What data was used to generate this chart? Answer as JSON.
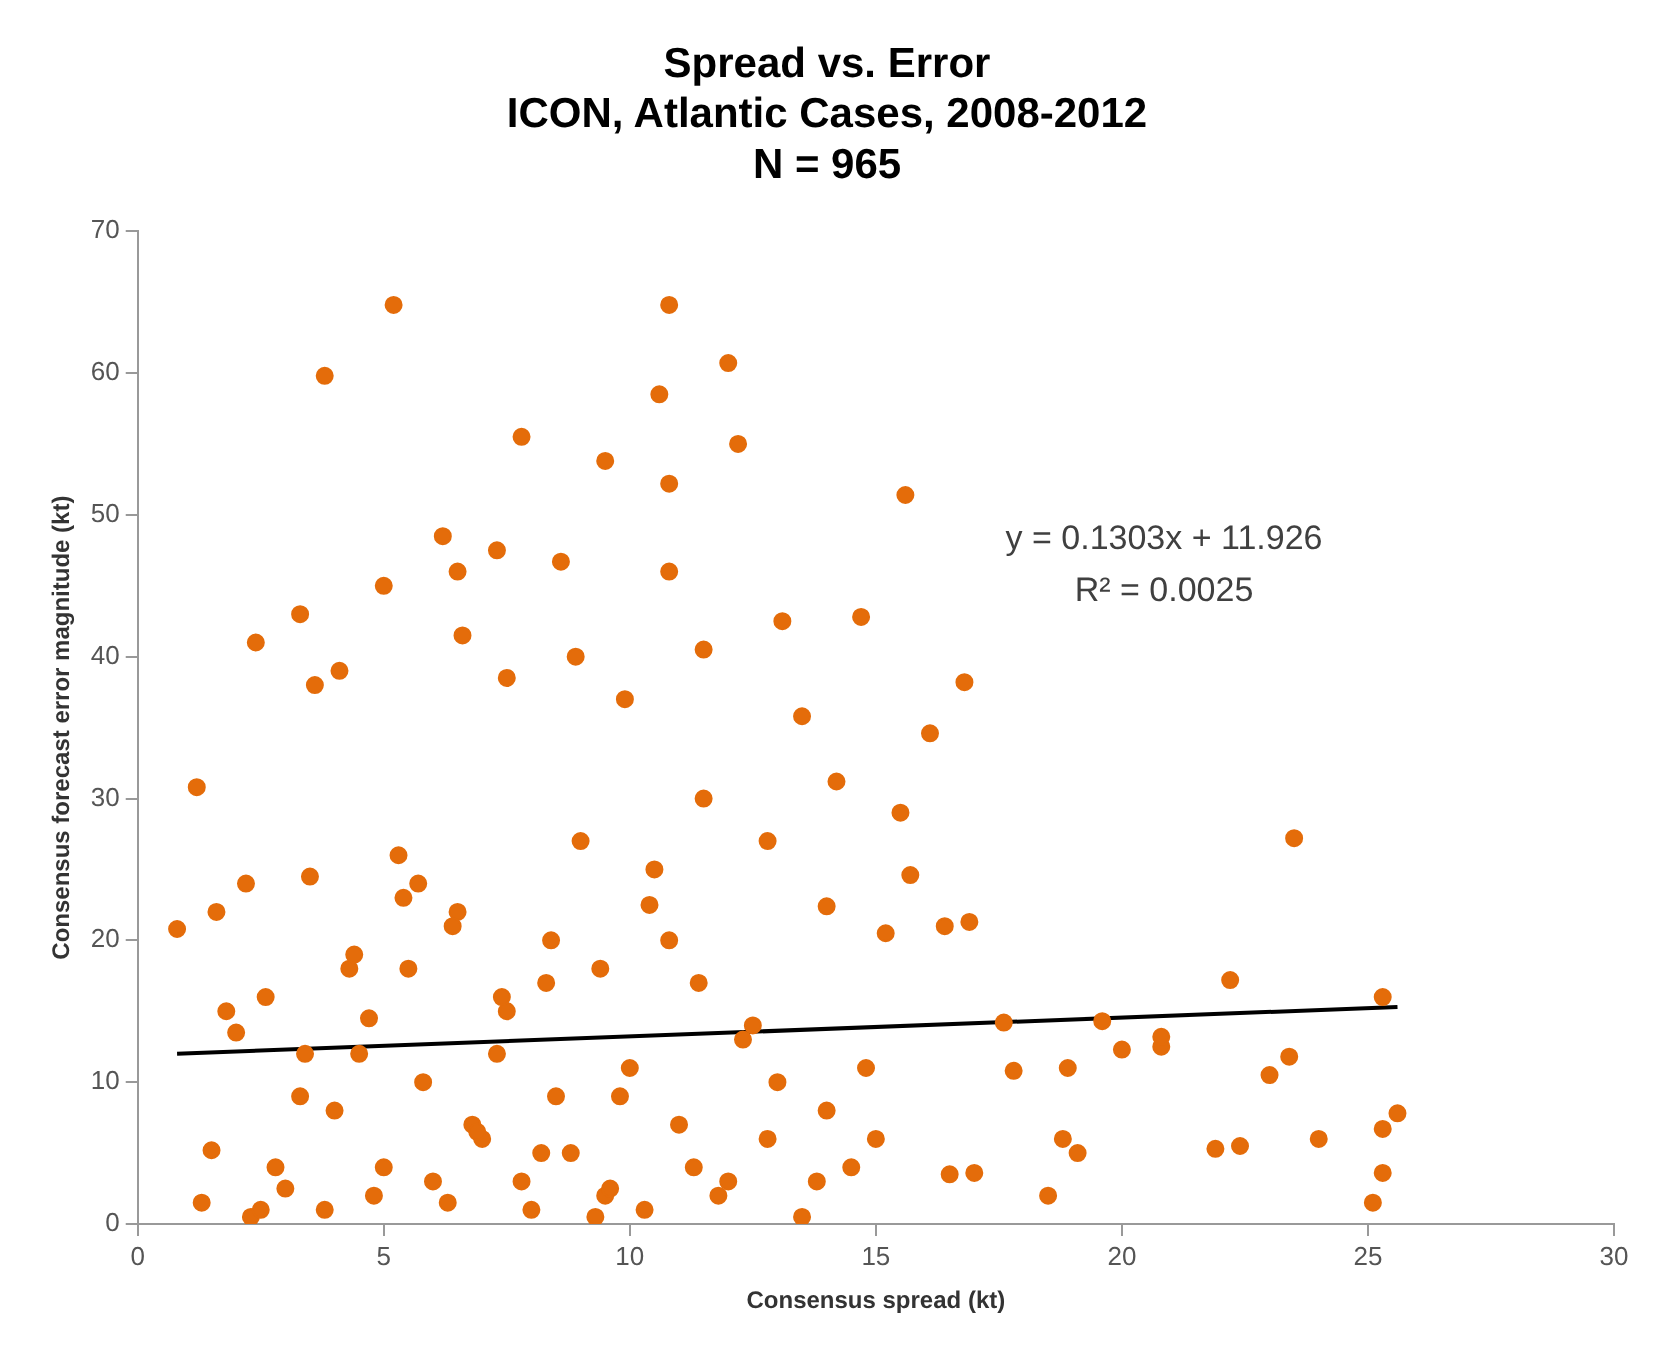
{
  "chart_data": {
    "type": "scatter",
    "title": "Spread vs. Error",
    "subtitle": "ICON, Atlantic Cases, 2008-2012\nN = 965",
    "xlabel": "Consensus spread (kt)",
    "ylabel": "Consensus forecast error magnitude (kt)",
    "xlim": [
      0,
      30
    ],
    "xticks": [
      0,
      5,
      10,
      15,
      20,
      25,
      30
    ],
    "ylim": [
      0,
      70
    ],
    "yticks": [
      0,
      10,
      20,
      30,
      40,
      50,
      60,
      70
    ],
    "grid": false,
    "legend": false,
    "marker": "circle",
    "annotations": [
      "y = 0.1303x + 11.926",
      "R² = 0.0025"
    ],
    "series": [
      {
        "color": "#e46c0a",
        "x": [
          5.2,
          10.8,
          3.8,
          12,
          10.6,
          7.8,
          12.2,
          9.5,
          10.8,
          15.6,
          6.2,
          7.3,
          8.6,
          6.5,
          10.8,
          5,
          13.1,
          14.7,
          3.3,
          16.8,
          23.5,
          25.3,
          22.2,
          25.6,
          25.3,
          25.3,
          25.1,
          24,
          23.4,
          23,
          22.4,
          21.9,
          20.8,
          20.8,
          20,
          19.6,
          19.1,
          18.8,
          18.9,
          18.5,
          17.8,
          17.6,
          16.9,
          16.4,
          17,
          16.5,
          16.1,
          15.7,
          15.5,
          15.2,
          14,
          14.2,
          2.4,
          4.1,
          3.6,
          6.6,
          7.5,
          8.9,
          9.9,
          11.5,
          12.8,
          13.5,
          0.8,
          1.2,
          1.5,
          2.0,
          2.6,
          3.0,
          3.5,
          4.0,
          4.5,
          5.0,
          5.5,
          6.0,
          6.5,
          7.0,
          7.5,
          8.0,
          8.5,
          9.0,
          9.5,
          10.0,
          10.5,
          11.0,
          11.5,
          12.0,
          12.5,
          13.0,
          13.5,
          14.0,
          14.5,
          15.0,
          1.3,
          1.8,
          2.3,
          2.8,
          3.3,
          3.8,
          4.3,
          4.8,
          5.3,
          5.8,
          6.3,
          6.8,
          7.3,
          7.8,
          8.3,
          8.8,
          9.3,
          9.8,
          10.3,
          10.8,
          11.3,
          11.8,
          12.3,
          12.8,
          13.8,
          14.8,
          1.6,
          2.5,
          3.4,
          4.4,
          5.4,
          6.4,
          7.4,
          8.4,
          9.4,
          10.4,
          11.4,
          2.2,
          4.7,
          5.7,
          6.9,
          8.2,
          9.6
        ],
        "values": [
          64.8,
          64.8,
          59.8,
          60.7,
          58.5,
          55.5,
          55,
          53.8,
          52.2,
          51.4,
          48.5,
          47.5,
          46.7,
          46,
          46,
          45,
          42.5,
          42.8,
          43,
          38.2,
          27.2,
          16,
          17.2,
          7.8,
          6.7,
          3.6,
          1.5,
          6,
          11.8,
          10.5,
          5.5,
          5.3,
          12.5,
          13.2,
          12.3,
          14.3,
          5,
          6,
          11,
          2,
          10.8,
          14.2,
          21.3,
          21,
          3.6,
          3.5,
          34.6,
          24.6,
          29,
          20.5,
          22.4,
          31.2,
          41,
          39,
          38,
          41.5,
          38.5,
          40,
          37,
          40.5,
          27,
          35.8,
          20.8,
          30.8,
          5.2,
          13.5,
          16,
          2.5,
          24.5,
          8,
          12,
          4,
          18,
          3,
          22,
          6,
          15,
          1,
          9,
          27,
          2,
          11,
          25,
          7,
          30,
          3,
          14,
          10,
          0.5,
          8,
          4,
          6,
          1.5,
          15,
          0.5,
          4,
          9,
          1,
          18,
          2,
          26,
          10,
          1.5,
          7,
          12,
          3,
          17,
          5,
          0.5,
          9,
          1,
          20,
          4,
          2,
          13,
          6,
          3,
          11,
          22,
          1,
          12,
          19,
          23,
          21,
          16,
          20,
          18,
          22.5,
          17,
          24,
          14.5,
          24,
          6.5,
          5,
          2.5
        ]
      },
      {
        "type": "line",
        "color": "#000000",
        "marker": "none",
        "x": [
          0.8,
          25.6
        ],
        "values": [
          12.0,
          15.3
        ]
      }
    ]
  }
}
